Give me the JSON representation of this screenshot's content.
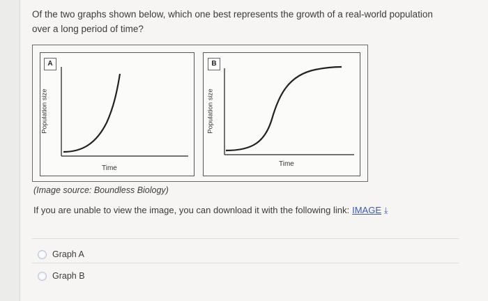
{
  "question": "Of the two graphs shown below, which one best represents the growth of a real-world population over a long period of time?",
  "figure": {
    "panel_a": {
      "letter": "A",
      "ylabel": "Population size",
      "xlabel": "Time"
    },
    "panel_b": {
      "letter": "B",
      "ylabel": "Population size",
      "xlabel": "Time"
    }
  },
  "caption": "(Image source: Boundless Biology)",
  "download": {
    "text": "If you are unable to view the image, you can download it with the following link:",
    "link_label": "IMAGE",
    "icon": "download-arrow-icon"
  },
  "options": [
    {
      "label": "Graph A",
      "selected": false
    },
    {
      "label": "Graph B",
      "selected": false
    }
  ],
  "colors": {
    "link": "#3a57c8",
    "curve": "#222222"
  }
}
